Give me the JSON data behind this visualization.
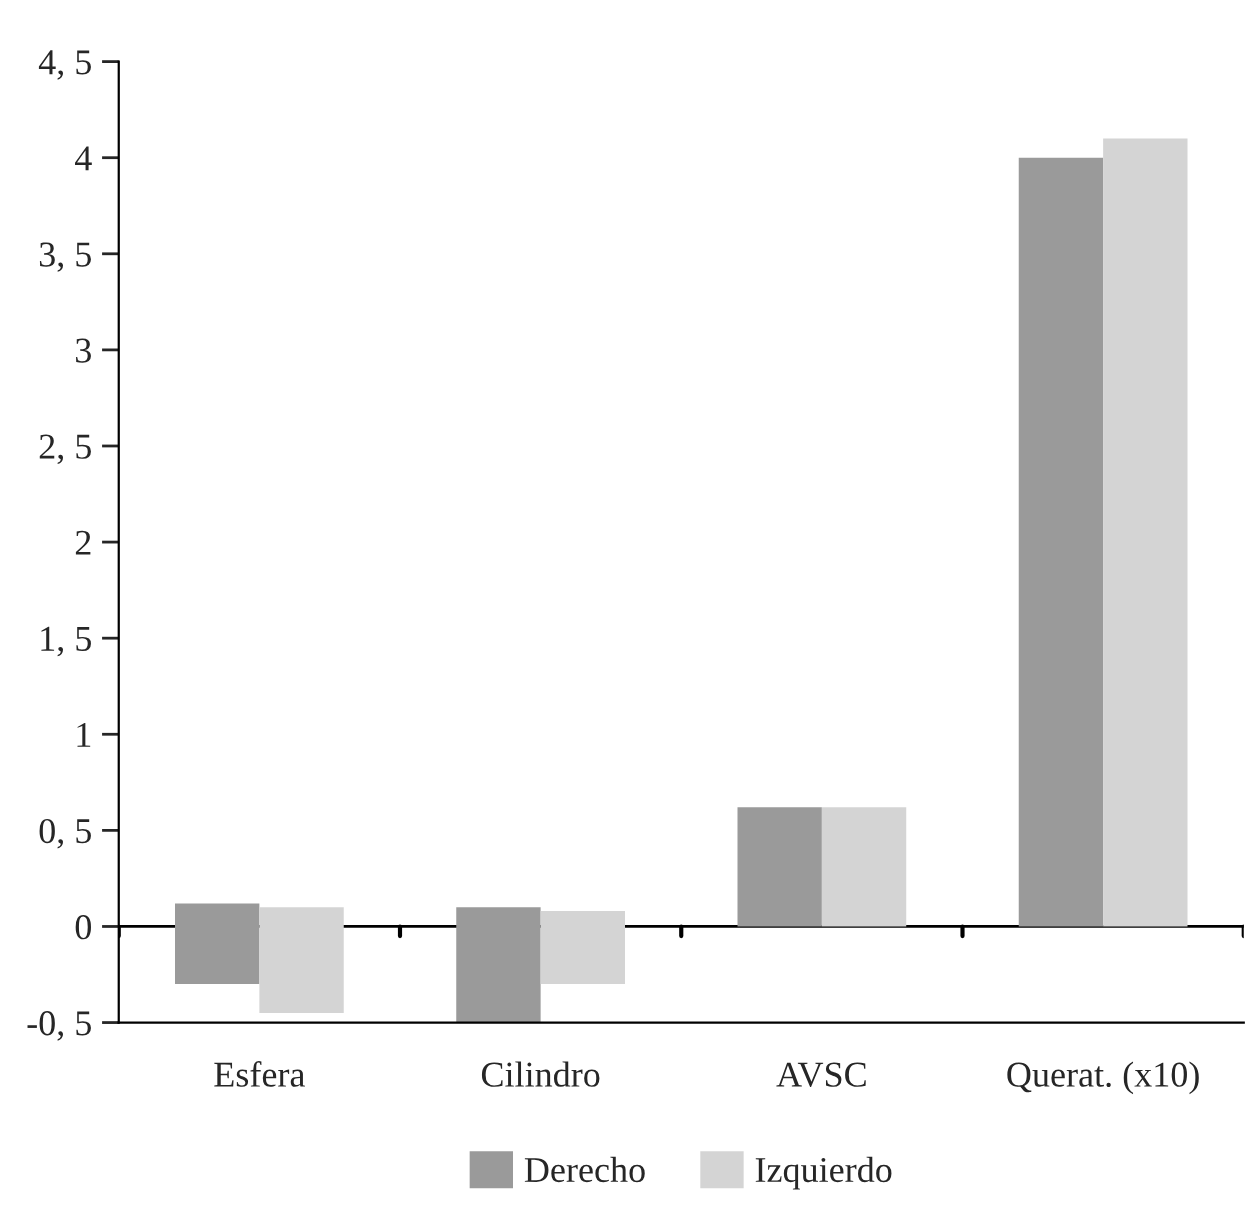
{
  "chart_data": {
    "type": "bar",
    "categories": [
      "Esfera",
      "Cilindro",
      "AVSC",
      "Querat. (x10)"
    ],
    "series": [
      {
        "name": "Derecho",
        "color": "#9a9a9a",
        "values": [
          0.42,
          0.6,
          0.62,
          4.0
        ],
        "base": [
          -0.3,
          -0.5,
          0,
          0
        ]
      },
      {
        "name": "Izquierdo",
        "color": "#d4d4d4",
        "values": [
          0.55,
          0.38,
          0.62,
          4.1
        ],
        "base": [
          -0.45,
          -0.3,
          0,
          0
        ]
      }
    ],
    "ylim": [
      -0.5,
      4.5
    ],
    "yticks": [
      {
        "value": -0.5,
        "label": "-0, 5"
      },
      0,
      {
        "value": 0.5,
        "label": "0, 5"
      },
      1,
      {
        "value": 1.5,
        "label": "1, 5"
      },
      2,
      {
        "value": 2.5,
        "label": "2, 5"
      },
      3,
      {
        "value": 3.5,
        "label": "3, 5"
      },
      4,
      {
        "value": 4.5,
        "label": "4, 5"
      }
    ],
    "ref_lines": [
      {
        "axis": "y",
        "value": 0,
        "color": "#000000"
      }
    ],
    "grid": false,
    "legend": "bottom"
  }
}
